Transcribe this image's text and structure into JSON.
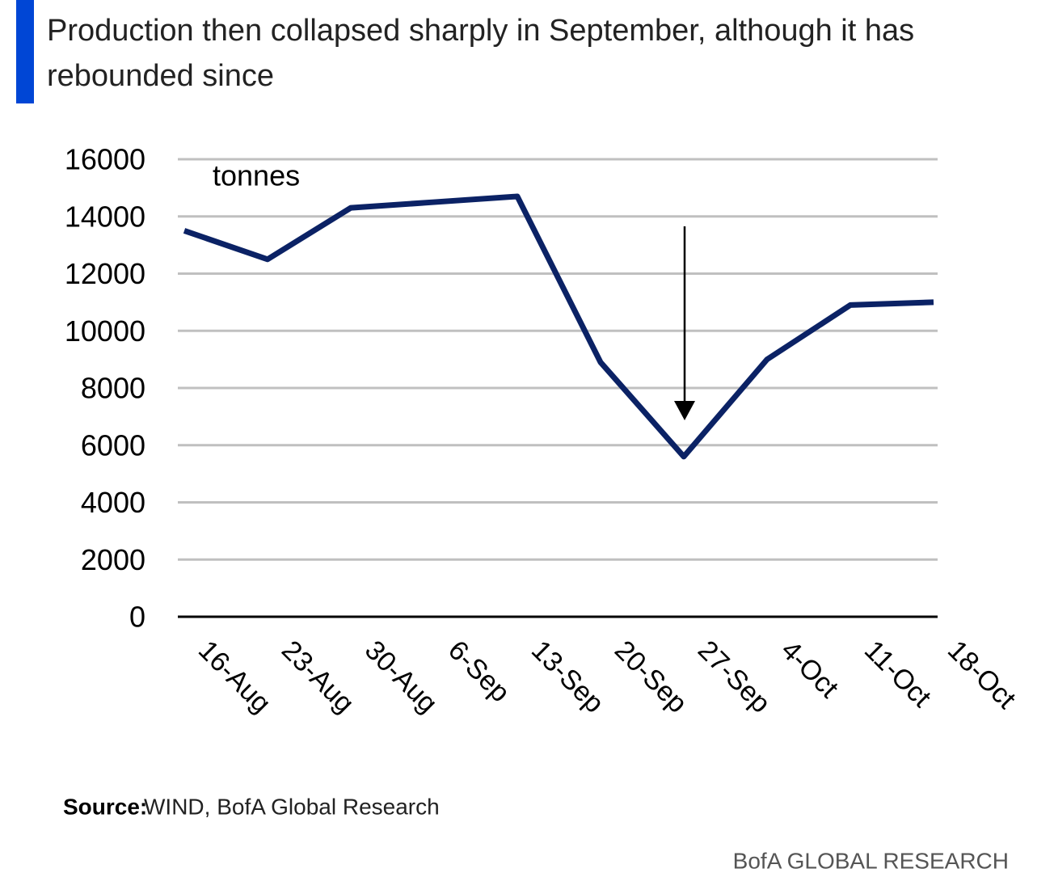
{
  "chart_data": {
    "type": "line",
    "title": "Production then collapsed sharply in September, although it has rebounded since",
    "y_label": "tonnes",
    "categories": [
      "16-Aug",
      "23-Aug",
      "30-Aug",
      "6-Sep",
      "13-Sep",
      "20-Sep",
      "27-Sep",
      "4-Oct",
      "11-Oct",
      "18-Oct"
    ],
    "series": [
      {
        "name": "Production",
        "color": "#0b2265",
        "values": [
          13500,
          12500,
          14300,
          14500,
          14700,
          8900,
          5600,
          9000,
          10900,
          11000
        ]
      }
    ],
    "ylim": [
      0,
      16000
    ],
    "yticks": [
      0,
      2000,
      4000,
      6000,
      8000,
      10000,
      12000,
      14000,
      16000
    ],
    "grid": true,
    "source_label": "Source:",
    "source": "WIND, BofA Global Research",
    "brand": "BofA GLOBAL RESEARCH"
  }
}
